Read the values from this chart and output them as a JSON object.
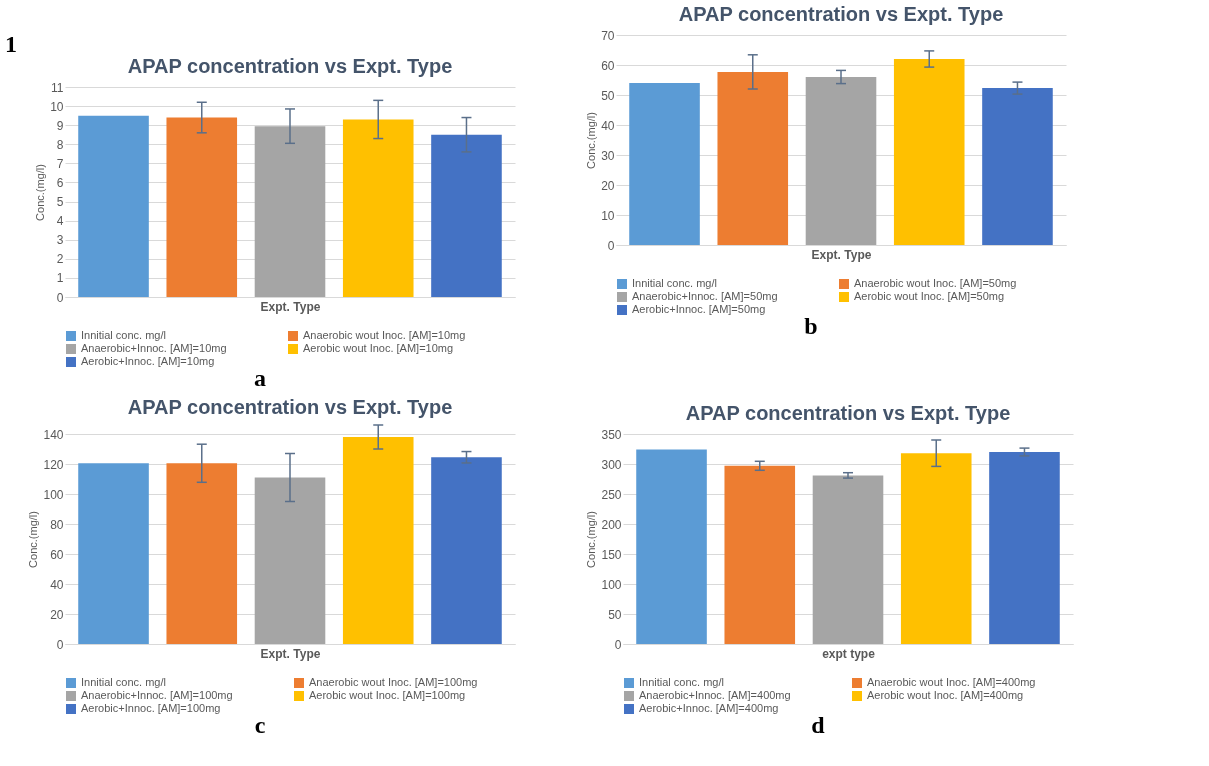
{
  "chart_data": [
    {
      "type": "bar",
      "title": "APAP concentration vs Expt. Type",
      "xlabel": "Expt. Type",
      "ylabel": "Conc.(mg/l)",
      "annotations": [
        "1",
        "a"
      ],
      "categories": [
        null
      ],
      "ylim": [
        0,
        11
      ],
      "yticks": [
        0,
        1,
        2,
        3,
        4,
        5,
        6,
        7,
        8,
        9,
        10,
        11
      ],
      "grid": "y",
      "legend": "bottom",
      "series": [
        {
          "name": "Innitial conc. mg/l",
          "color": "#5b9bd5",
          "values": [
            9.5
          ]
        },
        {
          "name": "Anaerobic wout Inoc. [AM]=10mg",
          "color": "#ed7d31",
          "values": [
            9.4
          ],
          "errors": [
            0.8
          ]
        },
        {
          "name": "Anaerobic+Innoc. [AM]=10mg",
          "color": "#a5a5a5",
          "values": [
            8.95
          ],
          "errors": [
            0.9
          ]
        },
        {
          "name": "Aerobic wout Inoc. [AM]=10mg",
          "color": "#ffc000",
          "values": [
            9.3
          ],
          "errors": [
            1.0
          ]
        },
        {
          "name": "Aerobic+Innoc. [AM]=10mg",
          "color": "#4472c4",
          "values": [
            8.5
          ],
          "errors": [
            0.9
          ]
        }
      ]
    },
    {
      "type": "bar",
      "title": "APAP concentration vs Expt. Type",
      "xlabel": "Expt. Type",
      "ylabel": "Conc.(mg/l)",
      "annotations": [
        "b"
      ],
      "categories": [
        null
      ],
      "ylim": [
        0,
        70
      ],
      "yticks": [
        0,
        10,
        20,
        30,
        40,
        50,
        60,
        70
      ],
      "grid": "y",
      "legend": "bottom",
      "series": [
        {
          "name": "Innitial conc. mg/l",
          "color": "#5b9bd5",
          "values": [
            54
          ]
        },
        {
          "name": "Anaerobic wout Inoc. [AM]=50mg",
          "color": "#ed7d31",
          "values": [
            57.7
          ],
          "errors": [
            5.7
          ]
        },
        {
          "name": "Anaerobic+Innoc. [AM]=50mg",
          "color": "#a5a5a5",
          "values": [
            56
          ],
          "errors": [
            2.2
          ]
        },
        {
          "name": "Aerobic wout Inoc. [AM]=50mg",
          "color": "#ffc000",
          "values": [
            62
          ],
          "errors": [
            2.7
          ]
        },
        {
          "name": "Aerobic+Innoc. [AM]=50mg",
          "color": "#4472c4",
          "values": [
            52.3
          ],
          "errors": [
            2
          ]
        }
      ]
    },
    {
      "type": "bar",
      "title": "APAP concentration vs Expt. Type",
      "xlabel": "Expt. Type",
      "ylabel": "Conc.(mg/l)",
      "annotations": [
        "c"
      ],
      "categories": [
        null
      ],
      "ylim": [
        0,
        140
      ],
      "yticks": [
        0,
        20,
        40,
        60,
        80,
        100,
        120,
        140
      ],
      "grid": "y",
      "legend": "bottom",
      "series": [
        {
          "name": "Innitial conc. mg/l",
          "color": "#5b9bd5",
          "values": [
            120.5
          ]
        },
        {
          "name": "Anaerobic wout Inoc. [AM]=100mg",
          "color": "#ed7d31",
          "values": [
            120.5
          ],
          "errors": [
            12.7
          ]
        },
        {
          "name": "Anaerobic+Innoc. [AM]=100mg",
          "color": "#a5a5a5",
          "values": [
            111
          ],
          "errors": [
            16
          ]
        },
        {
          "name": "Aerobic wout Inoc. [AM]=100mg",
          "color": "#ffc000",
          "values": [
            138
          ],
          "errors": [
            8
          ]
        },
        {
          "name": "Aerobic+Innoc. [AM]=100mg",
          "color": "#4472c4",
          "values": [
            124.5
          ],
          "errors": [
            3.8
          ]
        }
      ]
    },
    {
      "type": "bar",
      "title": "APAP concentration vs Expt. Type",
      "xlabel": "expt type",
      "ylabel": "Conc.(mg/l)",
      "annotations": [
        "d"
      ],
      "categories": [
        null
      ],
      "ylim": [
        0,
        350
      ],
      "yticks": [
        0,
        50,
        100,
        150,
        200,
        250,
        300,
        350
      ],
      "grid": "y",
      "legend": "bottom",
      "series": [
        {
          "name": "Innitial conc. mg/l",
          "color": "#5b9bd5",
          "values": [
            324
          ]
        },
        {
          "name": "Anaerobic wout Inoc. [AM]=400mg",
          "color": "#ed7d31",
          "values": [
            297
          ],
          "errors": [
            7.5
          ]
        },
        {
          "name": "Anaerobic+Innoc. [AM]=400mg",
          "color": "#a5a5a5",
          "values": [
            281
          ],
          "errors": [
            4.5
          ]
        },
        {
          "name": "Aerobic wout Inoc. [AM]=400mg",
          "color": "#ffc000",
          "values": [
            318
          ],
          "errors": [
            22
          ]
        },
        {
          "name": "Aerobic+Innoc. [AM]=400mg",
          "color": "#4472c4",
          "values": [
            320
          ],
          "errors": [
            6.5
          ]
        }
      ]
    }
  ]
}
